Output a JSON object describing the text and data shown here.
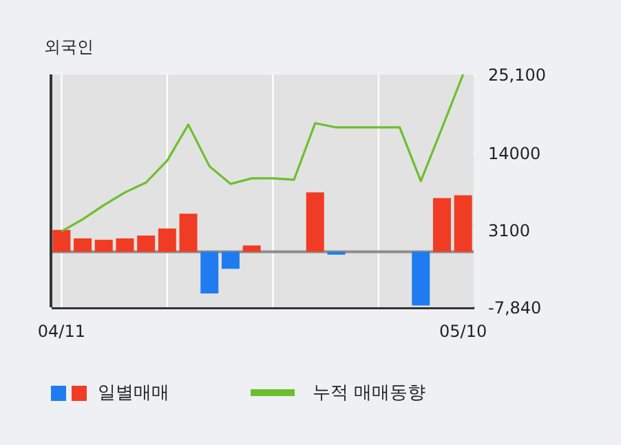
{
  "chart_data": {
    "type": "bar",
    "title": "외국인",
    "categories": [
      "04/11",
      null,
      null,
      null,
      null,
      null,
      null,
      null,
      null,
      null,
      null,
      null,
      null,
      null,
      null,
      null,
      null,
      null,
      null,
      "05/10"
    ],
    "series": [
      {
        "name": "일별매매",
        "colors": [
          "#f03c24",
          "#f03c24",
          "#f03c24",
          "#f03c24",
          "#f03c24",
          "#f03c24",
          "#f03c24",
          "#1e7cf0",
          "#1e7cf0",
          "#f03c24",
          null,
          null,
          "#f03c24",
          "#1e7cf0",
          null,
          null,
          null,
          "#1e7cf0",
          "#f03c24",
          "#f03c24"
        ],
        "values": [
          3100,
          1900,
          1700,
          1900,
          2300,
          3300,
          5400,
          -5900,
          -2400,
          900,
          null,
          null,
          8400,
          -400,
          null,
          null,
          null,
          -7600,
          7600,
          8000
        ]
      },
      {
        "name": "누적 매매동향",
        "type": "line",
        "color": "#6cbf2c",
        "values": [
          2900,
          4600,
          6600,
          8400,
          9800,
          12900,
          18000,
          12100,
          9600,
          10400,
          10400,
          10200,
          18200,
          17600,
          17600,
          17600,
          17600,
          10000,
          17500,
          25100
        ]
      }
    ],
    "ylim": [
      -7840,
      25100
    ],
    "yticks": [
      {
        "value": 25100,
        "label": "25,100"
      },
      14000,
      3100,
      {
        "value": -7840,
        "label": "-7,840"
      }
    ],
    "grid": true,
    "legend": "bottom"
  }
}
